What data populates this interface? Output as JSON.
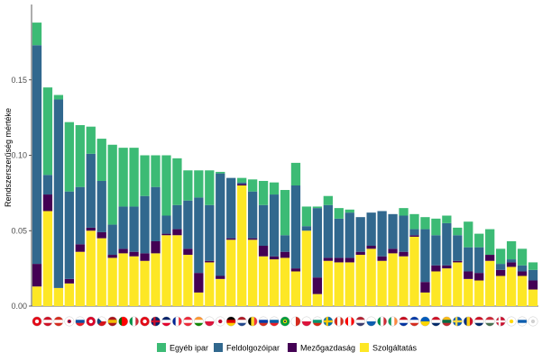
{
  "chart_data": {
    "type": "bar",
    "stacked": true,
    "ylabel": "Rendszerszerűség mértéke",
    "xlabel": "",
    "ylim": [
      0,
      0.2
    ],
    "yticks": [
      {
        "value": 0.0,
        "label": "0.00"
      },
      {
        "value": 0.05,
        "label": "0.05"
      },
      {
        "value": 0.1,
        "label": "0.10"
      },
      {
        "value": 0.15,
        "label": "0.15"
      }
    ],
    "grid": false,
    "legend_position": "bottom",
    "series": [
      {
        "name": "Szolgáltatás",
        "color": "#fde725",
        "values": [
          0.013,
          0.063,
          0.012,
          0.015,
          0.036,
          0.05,
          0.045,
          0.032,
          0.035,
          0.033,
          0.03,
          0.035,
          0.047,
          0.047,
          0.034,
          0.009,
          0.029,
          0.018,
          0.044,
          0.08,
          0.044,
          0.033,
          0.031,
          0.032,
          0.023,
          0.05,
          0.008,
          0.03,
          0.029,
          0.029,
          0.034,
          0.038,
          0.03,
          0.035,
          0.033,
          0.046,
          0.009,
          0.023,
          0.025,
          0.029,
          0.018,
          0.017,
          0.03,
          0.02,
          0.026,
          0.02,
          0.011
        ]
      },
      {
        "name": "Mezőgazdaság",
        "color": "#440154",
        "values": [
          0.015,
          0.011,
          0.0,
          0.003,
          0.005,
          0.002,
          0.004,
          0.002,
          0.003,
          0.003,
          0.005,
          0.008,
          0.001,
          0.004,
          0.004,
          0.013,
          0.001,
          0.002,
          0.001,
          0.001,
          0.001,
          0.007,
          0.002,
          0.004,
          0.002,
          0.0,
          0.011,
          0.002,
          0.003,
          0.003,
          0.002,
          0.002,
          0.003,
          0.003,
          0.003,
          0.001,
          0.007,
          0.004,
          0.002,
          0.001,
          0.005,
          0.005,
          0.004,
          0.004,
          0.003,
          0.003,
          0.006
        ]
      },
      {
        "name": "Feldolgozóipar",
        "color": "#31688e",
        "values": [
          0.145,
          0.013,
          0.125,
          0.058,
          0.038,
          0.049,
          0.034,
          0.02,
          0.028,
          0.03,
          0.038,
          0.036,
          0.012,
          0.016,
          0.032,
          0.05,
          0.037,
          0.068,
          0.04,
          0.001,
          0.031,
          0.027,
          0.041,
          0.011,
          0.055,
          0.003,
          0.046,
          0.035,
          0.026,
          0.03,
          0.023,
          0.022,
          0.03,
          0.023,
          0.024,
          0.004,
          0.035,
          0.02,
          0.028,
          0.017,
          0.016,
          0.017,
          0.0,
          0.004,
          0.002,
          0.004,
          0.007
        ]
      },
      {
        "name": "Egyéb ipar",
        "color": "#3cbb75",
        "values": [
          0.015,
          0.058,
          0.003,
          0.046,
          0.041,
          0.018,
          0.028,
          0.053,
          0.039,
          0.039,
          0.027,
          0.021,
          0.04,
          0.031,
          0.02,
          0.018,
          0.023,
          0.001,
          0.0,
          0.003,
          0.008,
          0.016,
          0.008,
          0.03,
          0.015,
          0.013,
          0.001,
          0.006,
          0.007,
          0.002,
          0.0,
          0.0,
          0.0,
          0.0,
          0.005,
          0.01,
          0.008,
          0.011,
          0.005,
          0.005,
          0.017,
          0.009,
          0.017,
          0.01,
          0.012,
          0.011,
          0.005
        ]
      }
    ],
    "legend_order": [
      "Egyéb ipar",
      "Feldolgozóipar",
      "Mezőgazdaság",
      "Szolgáltatás"
    ],
    "flags": [
      {
        "colors": [
          "#e30a17",
          "#ffffff"
        ],
        "kind": "disc-center"
      },
      {
        "colors": [
          "#ce1126",
          "#ffffff",
          "#ce1126"
        ],
        "kind": "h3"
      },
      {
        "colors": [
          "#d52b1e",
          "#ffffff",
          "#d52b1e"
        ],
        "kind": "h3"
      },
      {
        "colors": [
          "#ffffff",
          "#c60c30",
          "#003478"
        ],
        "kind": "disc-center"
      },
      {
        "colors": [
          "#ffffff",
          "#0b4ea2",
          "#ee1c25"
        ],
        "kind": "h3"
      },
      {
        "colors": [
          "#d80027",
          "#ffffff"
        ],
        "kind": "disc-center"
      },
      {
        "colors": [
          "#11457e",
          "#ffffff",
          "#d7141a"
        ],
        "kind": "h2tri"
      },
      {
        "colors": [
          "#aa151b",
          "#f1bf00",
          "#aa151b"
        ],
        "kind": "h3"
      },
      {
        "colors": [
          "#006600",
          "#ff0000",
          "#ff0000"
        ],
        "kind": "v3"
      },
      {
        "colors": [
          "#009246",
          "#ffffff",
          "#ce2b37"
        ],
        "kind": "v3"
      },
      {
        "colors": [
          "#e30a17",
          "#ffffff"
        ],
        "kind": "disc-center"
      },
      {
        "colors": [
          "#012169",
          "#c8102e",
          "#ffffff"
        ],
        "kind": "cross"
      },
      {
        "colors": [
          "#012169",
          "#ffffff",
          "#e4002b"
        ],
        "kind": "h3"
      },
      {
        "colors": [
          "#002395",
          "#ffffff",
          "#ed2939"
        ],
        "kind": "v3"
      },
      {
        "colors": [
          "#ed2939",
          "#ffffff",
          "#ed2939"
        ],
        "kind": "h3"
      },
      {
        "colors": [
          "#ff9933",
          "#ffffff",
          "#138808"
        ],
        "kind": "h3"
      },
      {
        "colors": [
          "#ffffff",
          "#dc143c",
          "#dc143c"
        ],
        "kind": "h2"
      },
      {
        "colors": [
          "#ffffff",
          "#bc002d"
        ],
        "kind": "disc-center"
      },
      {
        "colors": [
          "#000000",
          "#dd0000",
          "#ffce00"
        ],
        "kind": "h3"
      },
      {
        "colors": [
          "#ae1c28",
          "#ffffff",
          "#21468b"
        ],
        "kind": "h3"
      },
      {
        "colors": [
          "#000000",
          "#fdda24",
          "#ef3340"
        ],
        "kind": "v3"
      },
      {
        "colors": [
          "#ffffff",
          "#0039a6",
          "#d52b1e"
        ],
        "kind": "h3"
      },
      {
        "colors": [
          "#ffffff",
          "#005da4",
          "#ed1c24"
        ],
        "kind": "h3"
      },
      {
        "colors": [
          "#009c3b",
          "#ffdf00",
          "#002776"
        ],
        "kind": "disc-center"
      },
      {
        "colors": [
          "#ffffff",
          "#d52b1e"
        ],
        "kind": "v2"
      },
      {
        "colors": [
          "#ffffff",
          "#dc143c",
          "#dc143c"
        ],
        "kind": "h2"
      },
      {
        "colors": [
          "#ffffff",
          "#00966e",
          "#d62612"
        ],
        "kind": "h3"
      },
      {
        "colors": [
          "#006aa7",
          "#fecc00"
        ],
        "kind": "cross"
      },
      {
        "colors": [
          "#d52b1e",
          "#ffffff",
          "#d52b1e"
        ],
        "kind": "v3"
      },
      {
        "colors": [
          "#ff0000",
          "#ffffff",
          "#ff0000"
        ],
        "kind": "v3"
      },
      {
        "colors": [
          "#b22234",
          "#ffffff",
          "#3c3b6e"
        ],
        "kind": "h3"
      },
      {
        "colors": [
          "#ffffff",
          "#0d5eaf"
        ],
        "kind": "h2"
      },
      {
        "colors": [
          "#009246",
          "#ffffff",
          "#ce2b37"
        ],
        "kind": "v3"
      },
      {
        "colors": [
          "#169b62",
          "#ffffff",
          "#ff883e"
        ],
        "kind": "v3"
      },
      {
        "colors": [
          "#c60b1e",
          "#ffffff",
          "#0033a0"
        ],
        "kind": "h3"
      },
      {
        "colors": [
          "#0039a6",
          "#ffffff",
          "#d52b1e"
        ],
        "kind": "h3"
      },
      {
        "colors": [
          "#005bbb",
          "#ffd500"
        ],
        "kind": "h2"
      },
      {
        "colors": [
          "#ce1126",
          "#ffffff",
          "#002868"
        ],
        "kind": "h3"
      },
      {
        "colors": [
          "#fdb913",
          "#006a44",
          "#c1272d"
        ],
        "kind": "h3"
      },
      {
        "colors": [
          "#0052b4",
          "#ffda44"
        ],
        "kind": "cross"
      },
      {
        "colors": [
          "#002b7f",
          "#fcd116",
          "#ce1126"
        ],
        "kind": "v3"
      },
      {
        "colors": [
          "#ce1126",
          "#ffffff",
          "#002868"
        ],
        "kind": "h3"
      },
      {
        "colors": [
          "#ce2939",
          "#ffffff",
          "#477050"
        ],
        "kind": "h3"
      },
      {
        "colors": [
          "#c8102e",
          "#ffffff"
        ],
        "kind": "cross"
      },
      {
        "colors": [
          "#ffffff",
          "#ffd700"
        ],
        "kind": "disc-center"
      },
      {
        "colors": [
          "#ffffff",
          "#0d5eaf",
          "#ffffff"
        ],
        "kind": "h3"
      },
      {
        "colors": [
          "#ffffff",
          "#d0d0d0"
        ],
        "kind": "disc-center"
      }
    ]
  }
}
